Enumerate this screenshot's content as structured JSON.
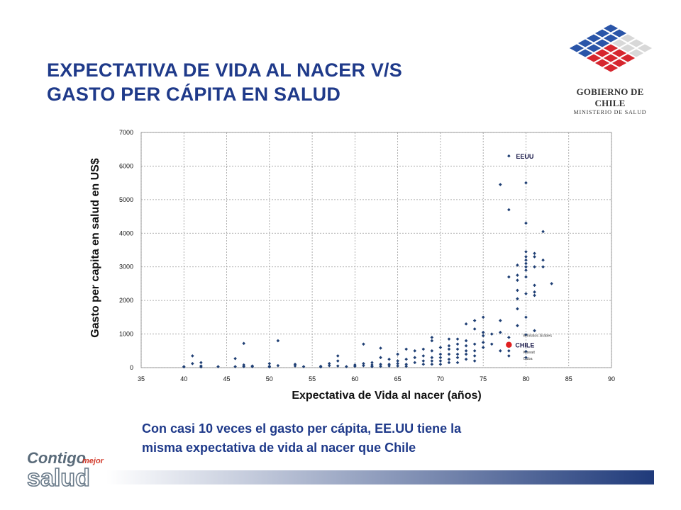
{
  "title": {
    "line1": "EXPECTATIVA DE VIDA AL NACER V/S",
    "line2": "GASTO PER CÁPITA EN SALUD"
  },
  "logo": {
    "line1": "GOBIERNO DE CHILE",
    "line2": "MINISTERIO DE SALUD"
  },
  "caption": {
    "line1": "Con casi 10 veces el gasto per cápita, EE.UU tiene la",
    "line2": "misma expectativa de vida al nacer que Chile"
  },
  "brand": {
    "word1": "Contigo",
    "word2": "mejor",
    "word3": "salud"
  },
  "colors": {
    "title": "#1f3a8a",
    "points": "#1f3f74",
    "highlight": "#e02020",
    "gradient_start": "#ffffff",
    "gradient_end": "#1f3a7a"
  },
  "chart_data": {
    "type": "scatter",
    "xlabel": "Expectativa de Vida al nacer (años)",
    "ylabel": "Gasto per capita en salud en US$",
    "xlim": [
      35,
      90
    ],
    "ylim": [
      0,
      7000
    ],
    "xticks": [
      35,
      40,
      45,
      50,
      55,
      60,
      65,
      70,
      75,
      80,
      85,
      90
    ],
    "yticks": [
      0,
      1000,
      2000,
      3000,
      4000,
      5000,
      6000,
      7000
    ],
    "grid": true,
    "annotations": [
      {
        "label": "EEUU",
        "x": 78,
        "y": 6300,
        "size": "normal"
      },
      {
        "label": "CHILE",
        "x": 78,
        "y": 680,
        "size": "normal",
        "highlight": true
      },
      {
        "label": "Emiratos Árabes",
        "x": 80,
        "y": 980,
        "size": "small"
      },
      {
        "label": "Kuwait",
        "x": 80,
        "y": 480,
        "size": "small"
      },
      {
        "label": "Cuba",
        "x": 80,
        "y": 300,
        "size": "small"
      }
    ],
    "highlight_point": {
      "x": 78,
      "y": 680
    },
    "points": [
      [
        40,
        30
      ],
      [
        40,
        20
      ],
      [
        41,
        350
      ],
      [
        41,
        120
      ],
      [
        42,
        150
      ],
      [
        42,
        50
      ],
      [
        42,
        20
      ],
      [
        44,
        30
      ],
      [
        46,
        270
      ],
      [
        46,
        30
      ],
      [
        47,
        720
      ],
      [
        47,
        80
      ],
      [
        47,
        30
      ],
      [
        48,
        30
      ],
      [
        48,
        50
      ],
      [
        50,
        120
      ],
      [
        50,
        40
      ],
      [
        50,
        20
      ],
      [
        51,
        800
      ],
      [
        51,
        60
      ],
      [
        53,
        50
      ],
      [
        53,
        100
      ],
      [
        54,
        30
      ],
      [
        56,
        40
      ],
      [
        56,
        20
      ],
      [
        57,
        120
      ],
      [
        57,
        60
      ],
      [
        58,
        350
      ],
      [
        58,
        200
      ],
      [
        58,
        50
      ],
      [
        59,
        30
      ],
      [
        60,
        40
      ],
      [
        60,
        80
      ],
      [
        61,
        700
      ],
      [
        61,
        120
      ],
      [
        61,
        60
      ],
      [
        62,
        150
      ],
      [
        62,
        80
      ],
      [
        62,
        30
      ],
      [
        63,
        580
      ],
      [
        63,
        300
      ],
      [
        63,
        100
      ],
      [
        63,
        40
      ],
      [
        64,
        250
      ],
      [
        64,
        100
      ],
      [
        64,
        50
      ],
      [
        65,
        400
      ],
      [
        65,
        200
      ],
      [
        65,
        120
      ],
      [
        65,
        50
      ],
      [
        66,
        550
      ],
      [
        66,
        250
      ],
      [
        66,
        100
      ],
      [
        66,
        40
      ],
      [
        67,
        500
      ],
      [
        67,
        300
      ],
      [
        67,
        150
      ],
      [
        68,
        550
      ],
      [
        68,
        350
      ],
      [
        68,
        200
      ],
      [
        68,
        100
      ],
      [
        69,
        900
      ],
      [
        69,
        800
      ],
      [
        69,
        500
      ],
      [
        69,
        300
      ],
      [
        69,
        200
      ],
      [
        69,
        100
      ],
      [
        70,
        400
      ],
      [
        70,
        300
      ],
      [
        70,
        200
      ],
      [
        70,
        100
      ],
      [
        70,
        600
      ],
      [
        71,
        850
      ],
      [
        71,
        650
      ],
      [
        71,
        550
      ],
      [
        71,
        400
      ],
      [
        71,
        250
      ],
      [
        71,
        150
      ],
      [
        72,
        850
      ],
      [
        72,
        700
      ],
      [
        72,
        550
      ],
      [
        72,
        400
      ],
      [
        72,
        300
      ],
      [
        72,
        150
      ],
      [
        73,
        1300
      ],
      [
        73,
        800
      ],
      [
        73,
        650
      ],
      [
        73,
        500
      ],
      [
        73,
        400
      ],
      [
        73,
        250
      ],
      [
        74,
        1400
      ],
      [
        74,
        1150
      ],
      [
        74,
        700
      ],
      [
        74,
        500
      ],
      [
        74,
        350
      ],
      [
        74,
        200
      ],
      [
        75,
        1500
      ],
      [
        75,
        1050
      ],
      [
        75,
        950
      ],
      [
        75,
        750
      ],
      [
        75,
        600
      ],
      [
        76,
        1000
      ],
      [
        76,
        700
      ],
      [
        77,
        5450
      ],
      [
        77,
        1400
      ],
      [
        77,
        1050
      ],
      [
        77,
        500
      ],
      [
        78,
        6300
      ],
      [
        78,
        4700
      ],
      [
        78,
        2700
      ],
      [
        78,
        900
      ],
      [
        78,
        500
      ],
      [
        78,
        350
      ],
      [
        79,
        3050
      ],
      [
        79,
        2600
      ],
      [
        79,
        2300
      ],
      [
        79,
        2050
      ],
      [
        79,
        1750
      ],
      [
        79,
        1250
      ],
      [
        79,
        2750
      ],
      [
        80,
        5500
      ],
      [
        80,
        4300
      ],
      [
        80,
        3450
      ],
      [
        80,
        3300
      ],
      [
        80,
        3200
      ],
      [
        80,
        3100
      ],
      [
        80,
        3000
      ],
      [
        80,
        2900
      ],
      [
        80,
        2700
      ],
      [
        80,
        2200
      ],
      [
        80,
        1500
      ],
      [
        80,
        980
      ],
      [
        80,
        480
      ],
      [
        80,
        300
      ],
      [
        81,
        3400
      ],
      [
        81,
        3300
      ],
      [
        81,
        3000
      ],
      [
        81,
        2450
      ],
      [
        81,
        2250
      ],
      [
        81,
        2150
      ],
      [
        81,
        1100
      ],
      [
        82,
        4050
      ],
      [
        82,
        3200
      ],
      [
        82,
        3000
      ],
      [
        83,
        2500
      ]
    ]
  }
}
